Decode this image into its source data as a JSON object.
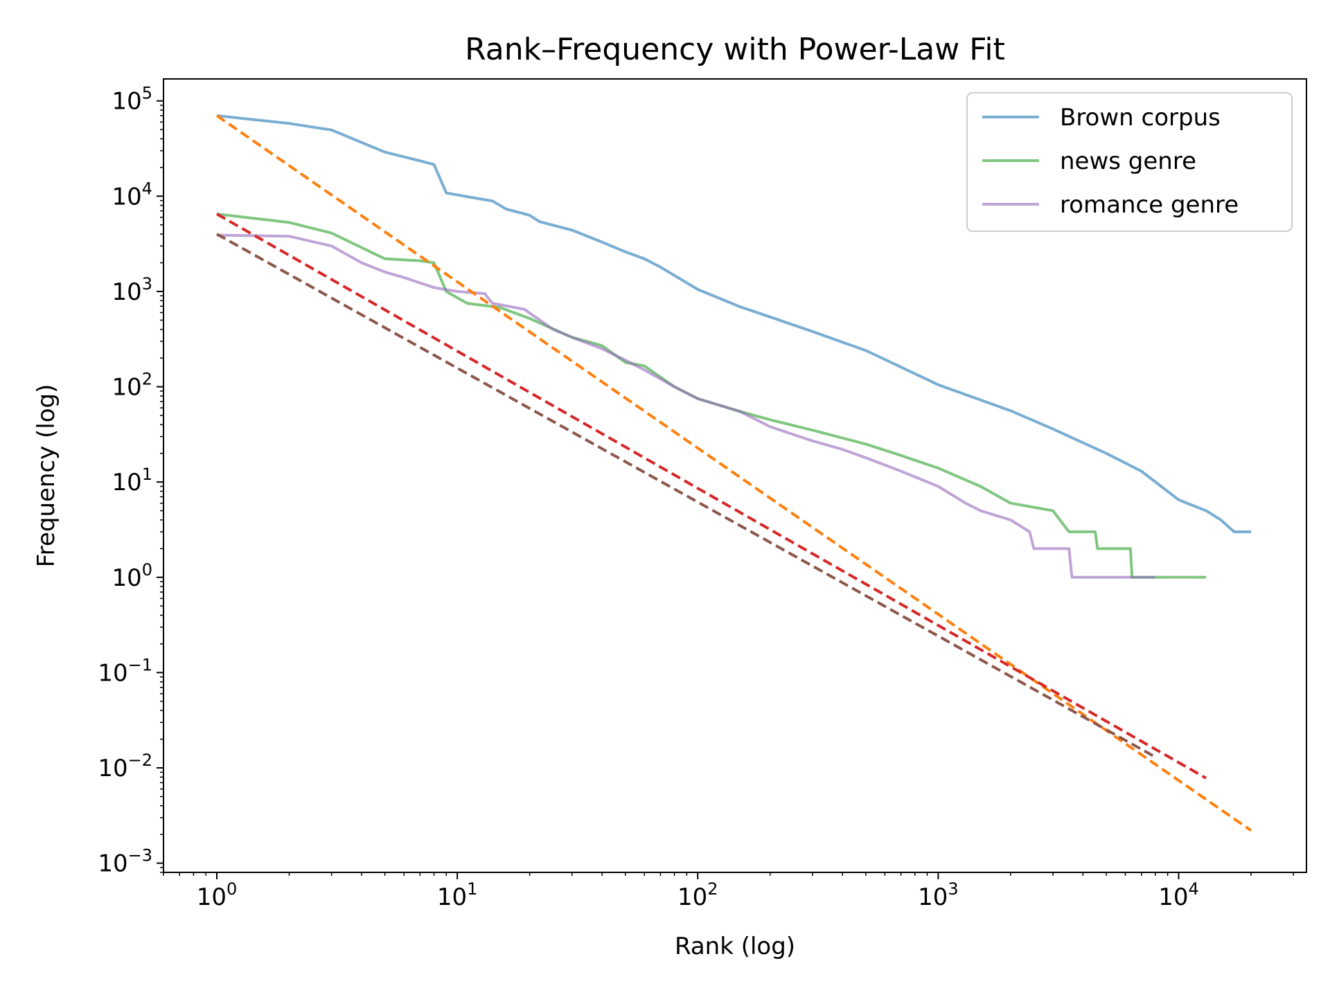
{
  "chart_data": {
    "type": "line",
    "title": "Rank–Frequency with Power-Law Fit",
    "xlabel": "Rank (log)",
    "ylabel": "Frequency (log)",
    "xscale": "log",
    "yscale": "log",
    "xlim": [
      0.6,
      34000
    ],
    "ylim": [
      0.0008,
      170000
    ],
    "grid": false,
    "legend_position": "top-right",
    "x_ticks": [
      {
        "base": "10",
        "exp": "0",
        "value": 1
      },
      {
        "base": "10",
        "exp": "1",
        "value": 10
      },
      {
        "base": "10",
        "exp": "2",
        "value": 100
      },
      {
        "base": "10",
        "exp": "3",
        "value": 1000
      },
      {
        "base": "10",
        "exp": "4",
        "value": 10000
      }
    ],
    "y_ticks": [
      {
        "base": "10",
        "exp": "5",
        "value": 100000
      },
      {
        "base": "10",
        "exp": "4",
        "value": 10000
      },
      {
        "base": "10",
        "exp": "3",
        "value": 1000
      },
      {
        "base": "10",
        "exp": "2",
        "value": 100
      },
      {
        "base": "10",
        "exp": "1",
        "value": 10
      },
      {
        "base": "10",
        "exp": "0",
        "value": 1
      },
      {
        "base": "10",
        "exp": "−1",
        "value": 0.1
      },
      {
        "base": "10",
        "exp": "−2",
        "value": 0.01
      },
      {
        "base": "10",
        "exp": "−3",
        "value": 0.001
      }
    ],
    "series": [
      {
        "name": "Brown corpus",
        "color": "#1f77b4",
        "opacity": 0.6,
        "style": "solid",
        "points": [
          [
            1,
            70000
          ],
          [
            2,
            58000
          ],
          [
            3,
            49500
          ],
          [
            5,
            29000
          ],
          [
            7,
            23500
          ],
          [
            8,
            21500
          ],
          [
            9,
            10800
          ],
          [
            12,
            9500
          ],
          [
            14,
            8900
          ],
          [
            16,
            7300
          ],
          [
            20,
            6300
          ],
          [
            22,
            5400
          ],
          [
            30,
            4400
          ],
          [
            40,
            3300
          ],
          [
            50,
            2600
          ],
          [
            60,
            2200
          ],
          [
            70,
            1800
          ],
          [
            100,
            1050
          ],
          [
            150,
            690
          ],
          [
            200,
            540
          ],
          [
            300,
            380
          ],
          [
            500,
            240
          ],
          [
            1000,
            105
          ],
          [
            2000,
            56
          ],
          [
            3000,
            36
          ],
          [
            5000,
            20
          ],
          [
            7000,
            13
          ],
          [
            10000,
            6.5
          ],
          [
            13000,
            5
          ],
          [
            15000,
            4
          ],
          [
            17000,
            3
          ],
          [
            20000,
            3
          ]
        ]
      },
      {
        "name": "news genre",
        "color": "#2ca02c",
        "opacity": 0.6,
        "style": "solid",
        "points": [
          [
            1,
            6500
          ],
          [
            2,
            5300
          ],
          [
            3,
            4100
          ],
          [
            5,
            2200
          ],
          [
            7,
            2100
          ],
          [
            8,
            2000
          ],
          [
            9,
            1000
          ],
          [
            11,
            750
          ],
          [
            15,
            680
          ],
          [
            20,
            520
          ],
          [
            30,
            330
          ],
          [
            40,
            270
          ],
          [
            50,
            180
          ],
          [
            60,
            165
          ],
          [
            80,
            100
          ],
          [
            100,
            75
          ],
          [
            150,
            55
          ],
          [
            200,
            45
          ],
          [
            300,
            35
          ],
          [
            500,
            25
          ],
          [
            700,
            19
          ],
          [
            1000,
            14
          ],
          [
            1500,
            9
          ],
          [
            2000,
            6
          ],
          [
            3000,
            5
          ],
          [
            3500,
            3
          ],
          [
            4500,
            3
          ],
          [
            4600,
            2
          ],
          [
            6300,
            2
          ],
          [
            6400,
            1
          ],
          [
            13000,
            1
          ]
        ]
      },
      {
        "name": "romance genre",
        "color": "#9467bd",
        "opacity": 0.6,
        "style": "solid",
        "points": [
          [
            1,
            3900
          ],
          [
            2,
            3800
          ],
          [
            3,
            3000
          ],
          [
            4,
            2000
          ],
          [
            5,
            1600
          ],
          [
            6,
            1400
          ],
          [
            8,
            1100
          ],
          [
            10,
            1000
          ],
          [
            13,
            950
          ],
          [
            14,
            750
          ],
          [
            19,
            650
          ],
          [
            25,
            400
          ],
          [
            30,
            330
          ],
          [
            40,
            250
          ],
          [
            50,
            190
          ],
          [
            60,
            150
          ],
          [
            80,
            100
          ],
          [
            100,
            75
          ],
          [
            150,
            55
          ],
          [
            200,
            38
          ],
          [
            300,
            27
          ],
          [
            400,
            22
          ],
          [
            500,
            18
          ],
          [
            700,
            13
          ],
          [
            1000,
            9
          ],
          [
            1300,
            6
          ],
          [
            1500,
            5
          ],
          [
            2000,
            4
          ],
          [
            2400,
            3
          ],
          [
            2500,
            2
          ],
          [
            3500,
            2
          ],
          [
            3600,
            1
          ],
          [
            8000,
            1
          ]
        ]
      },
      {
        "name": "",
        "color": "#ff7f0e",
        "opacity": 1,
        "style": "dashed",
        "points": [
          [
            1,
            70000
          ],
          [
            20000,
            0.0022
          ]
        ]
      },
      {
        "name": "",
        "color": "#d62728",
        "opacity": 1,
        "style": "dashed",
        "points": [
          [
            1,
            6500
          ],
          [
            13000,
            0.0078
          ]
        ]
      },
      {
        "name": "",
        "color": "#8c564b",
        "opacity": 1,
        "style": "dashed",
        "points": [
          [
            1,
            4000
          ],
          [
            8000,
            0.013
          ]
        ]
      }
    ]
  }
}
